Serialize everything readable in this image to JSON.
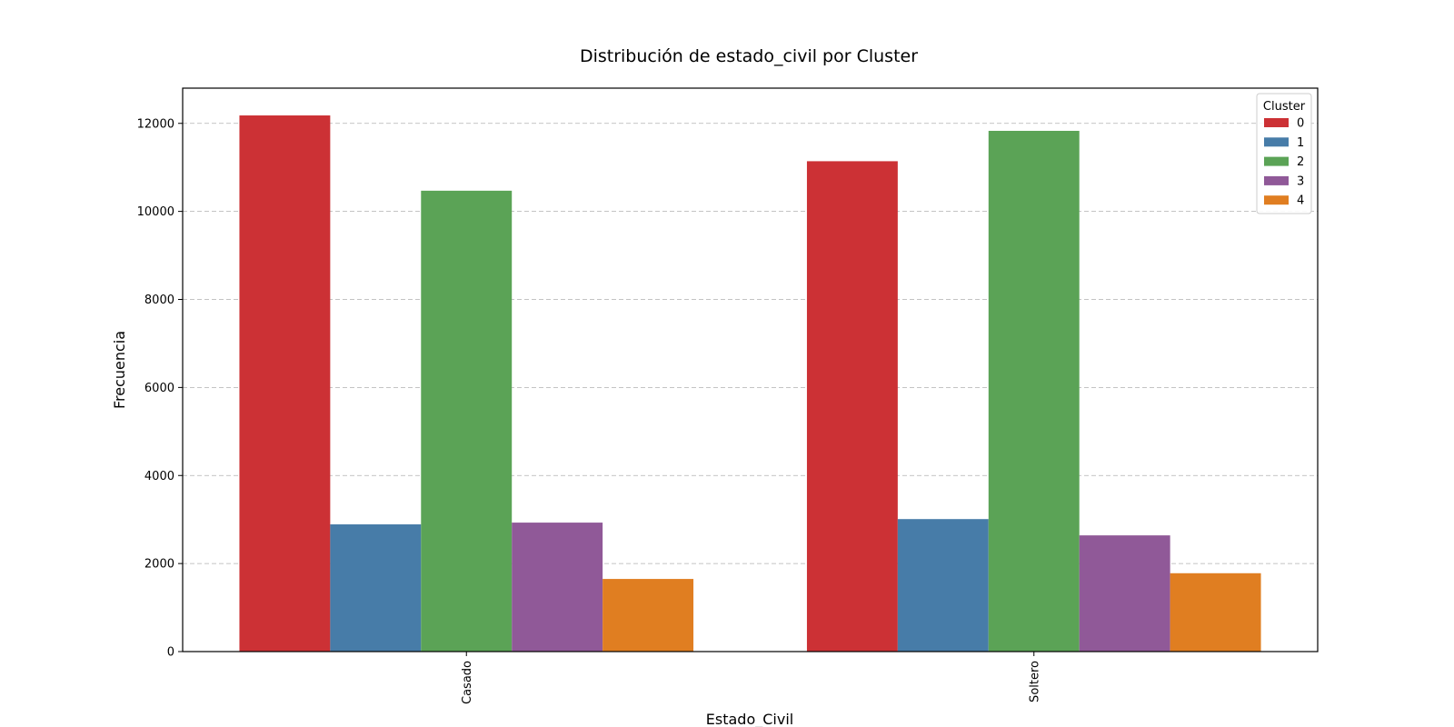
{
  "chart_data": {
    "type": "bar",
    "title": "Distribución de estado_civil por Cluster",
    "xlabel": "Estado_Civil",
    "ylabel": "Frecuencia",
    "categories": [
      "Casado",
      "Soltero"
    ],
    "ylim": [
      0,
      12800
    ],
    "yticks": [
      0,
      2000,
      4000,
      6000,
      8000,
      10000,
      12000
    ],
    "grid": "y-dashed",
    "legend": {
      "title": "Cluster",
      "placement": "top-right"
    },
    "series": [
      {
        "name": "0",
        "color": "#cc3135",
        "values": [
          12180,
          11140
        ]
      },
      {
        "name": "1",
        "color": "#477ca8",
        "values": [
          2890,
          3010
        ]
      },
      {
        "name": "2",
        "color": "#5ba356",
        "values": [
          10470,
          11830
        ]
      },
      {
        "name": "3",
        "color": "#905998",
        "values": [
          2930,
          2640
        ]
      },
      {
        "name": "4",
        "color": "#e07e21",
        "values": [
          1650,
          1780
        ]
      }
    ]
  }
}
